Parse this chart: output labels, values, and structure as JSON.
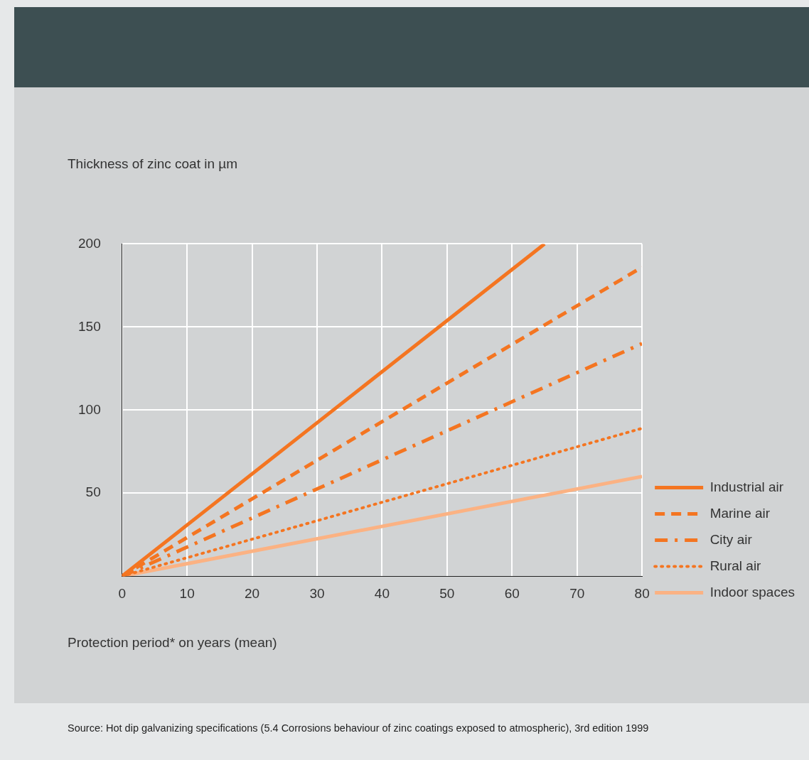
{
  "chart_data": {
    "type": "line",
    "ylabel": "Thickness of zinc coat in µm",
    "xlabel": "Protection period* on years (mean)",
    "annotations": [
      "Source: Hot dip galvanizing specifications (5.4 Corrosions behaviour of zinc coatings exposed to atmospheric), 3rd edition 1999"
    ],
    "series": [
      {
        "name": "Industrial air",
        "color": "#f47521",
        "x": [
          0,
          65
        ],
        "values": [
          0,
          200
        ],
        "line_style": "solid"
      },
      {
        "name": "Marine air",
        "color": "#f47521",
        "x": [
          0,
          80
        ],
        "values": [
          0,
          186
        ],
        "line_style": "dashed"
      },
      {
        "name": "City air",
        "color": "#f47521",
        "x": [
          0,
          80
        ],
        "values": [
          0,
          140
        ],
        "line_style": "dashdot"
      },
      {
        "name": "Rural air",
        "color": "#f47521",
        "x": [
          0,
          80
        ],
        "values": [
          0,
          89
        ],
        "line_style": "dotted"
      },
      {
        "name": "Indoor spaces",
        "color": "#fbb283",
        "x": [
          0,
          80
        ],
        "values": [
          0,
          60
        ],
        "line_style": "solid"
      }
    ],
    "xlim": [
      0,
      80
    ],
    "xticks": [
      0,
      10,
      20,
      30,
      40,
      50,
      60,
      70,
      80
    ],
    "ylim": [
      0,
      200
    ],
    "yticks": [
      50,
      100,
      150,
      200
    ],
    "grid": true,
    "legend": "right",
    "marker": "none"
  }
}
